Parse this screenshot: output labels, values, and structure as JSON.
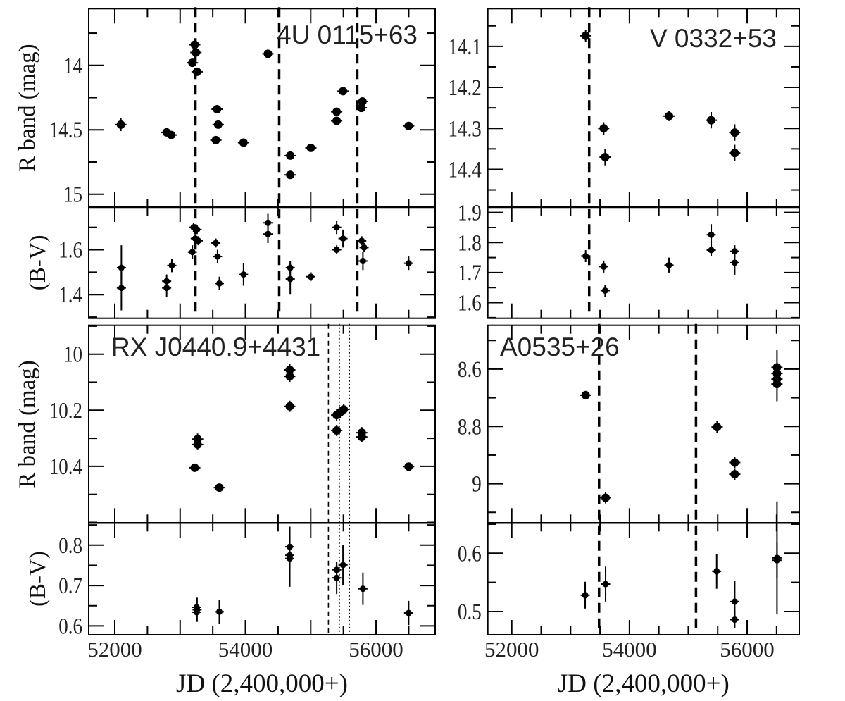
{
  "chart_data": [
    {
      "type": "scatter",
      "title": "4U 0115+63",
      "xlabel": "",
      "xlim": [
        51601,
        56905
      ],
      "xmajor": 1000,
      "xminor": 500,
      "xtick_labels": [],
      "vlines": [
        {
          "x": 53235,
          "style": "dashed"
        },
        {
          "x": 54517,
          "style": "dashed"
        },
        {
          "x": 55713,
          "style": "dashed"
        }
      ],
      "subplots": [
        {
          "ylabel": "R band (mag)",
          "ylim": [
            13.56,
            15.1
          ],
          "inverted": true,
          "ytick_labels": [
            "14",
            "14.5",
            "15"
          ],
          "yminor": 0.25,
          "marker": "large",
          "points": [
            [
              52093,
              14.46,
              0.05
            ],
            [
              52794,
              14.52,
              0.02
            ],
            [
              52865,
              14.54,
              0.02
            ],
            [
              53224,
              13.84,
              0.02
            ],
            [
              53242,
              13.9,
              0.02
            ],
            [
              53188,
              13.98,
              0.02
            ],
            [
              53260,
              14.05,
              0.03
            ],
            [
              53566,
              14.34,
              0.02
            ],
            [
              53583,
              14.46,
              0.02
            ],
            [
              53548,
              14.58,
              0.02
            ],
            [
              53971,
              14.6,
              0.02
            ],
            [
              54345,
              13.91,
              0.03
            ],
            [
              54686,
              14.7,
              0.02
            ],
            [
              54686,
              14.85,
              0.02
            ],
            [
              55002,
              14.64,
              0.02
            ],
            [
              55397,
              14.36,
              0.02
            ],
            [
              55397,
              14.43,
              0.02
            ],
            [
              55494,
              14.2,
              0.02
            ],
            [
              55774,
              14.33,
              0.02
            ],
            [
              55792,
              14.28,
              0.02
            ],
            [
              56499,
              14.47,
              0.02
            ]
          ]
        },
        {
          "ylabel": "(B-V)",
          "ylim": [
            1.295,
            1.79
          ],
          "inverted": false,
          "ytick_labels": [
            "1.4",
            "1.6"
          ],
          "yminor": 0.1,
          "marker": "small",
          "points": [
            [
              52101,
              1.52,
              0.1
            ],
            [
              52101,
              1.43,
              0.1
            ],
            [
              52794,
              1.46,
              0.03
            ],
            [
              52794,
              1.43,
              0.04
            ],
            [
              52873,
              1.53,
              0.03
            ],
            [
              53206,
              1.7,
              0.02
            ],
            [
              53260,
              1.69,
              0.02
            ],
            [
              53232,
              1.65,
              0.02
            ],
            [
              53278,
              1.64,
              0.02
            ],
            [
              53188,
              1.59,
              0.03
            ],
            [
              53548,
              1.63,
              0.02
            ],
            [
              53573,
              1.57,
              0.03
            ],
            [
              53601,
              1.45,
              0.03
            ],
            [
              53971,
              1.49,
              0.05
            ],
            [
              54345,
              1.72,
              0.04
            ],
            [
              54345,
              1.67,
              0.04
            ],
            [
              54686,
              1.52,
              0.03
            ],
            [
              54686,
              1.47,
              0.07
            ],
            [
              55002,
              1.48,
              0.02
            ],
            [
              55397,
              1.7,
              0.03
            ],
            [
              55494,
              1.65,
              0.04
            ],
            [
              55397,
              1.6,
              0.02
            ],
            [
              55781,
              1.64,
              0.02
            ],
            [
              55817,
              1.61,
              0.02
            ],
            [
              55799,
              1.55,
              0.04
            ],
            [
              56499,
              1.54,
              0.03
            ]
          ]
        }
      ]
    },
    {
      "type": "scatter",
      "title": "V 0332+53",
      "xlabel": "",
      "xlim": [
        51593,
        56885
      ],
      "xmajor": 2000,
      "xminor": 500,
      "xtick_labels": [],
      "vlines": [
        {
          "x": 53316,
          "style": "dashed"
        }
      ],
      "subplots": [
        {
          "ylabel": "",
          "ylim": [
            14.008,
            14.492
          ],
          "inverted": true,
          "ytick_labels": [
            "14.1",
            "14.2",
            "14.3",
            "14.4"
          ],
          "yminor": 0.05,
          "marker": "large",
          "points": [
            [
              53256,
              14.074,
              0.015
            ],
            [
              53563,
              14.3,
              0.015
            ],
            [
              53587,
              14.37,
              0.02
            ],
            [
              54672,
              14.27,
              0.012
            ],
            [
              55390,
              14.28,
              0.02
            ],
            [
              55789,
              14.31,
              0.02
            ],
            [
              55789,
              14.36,
              0.02
            ]
          ]
        },
        {
          "ylabel": "",
          "ylim": [
            1.548,
            1.918
          ],
          "inverted": false,
          "ytick_labels": [
            "1.6",
            "1.7",
            "1.8",
            "1.9"
          ],
          "yminor": 0.05,
          "marker": "small",
          "points": [
            [
              53256,
              1.755,
              0.02
            ],
            [
              53563,
              1.72,
              0.02
            ],
            [
              53587,
              1.64,
              0.02
            ],
            [
              54672,
              1.725,
              0.025
            ],
            [
              55390,
              1.826,
              0.035
            ],
            [
              55390,
              1.775,
              0.02
            ],
            [
              55789,
              1.771,
              0.02
            ],
            [
              55789,
              1.733,
              0.04
            ]
          ]
        }
      ]
    },
    {
      "type": "scatter",
      "title": "RX J0440.9+4431",
      "xlabel": "JD (2,400,000+)",
      "xlim": [
        51601,
        56905
      ],
      "xmajor": 1000,
      "xminor": 500,
      "xtick_labels": [
        "52000",
        "54000",
        "56000"
      ],
      "vlines": [
        {
          "x": 55271,
          "style": "thin-dashed"
        },
        {
          "x": 55440,
          "style": "dotted"
        },
        {
          "x": 55594,
          "style": "dotted"
        }
      ],
      "subplots": [
        {
          "ylabel": "R band (mag)",
          "ylim": [
            9.897,
            10.602
          ],
          "inverted": true,
          "ytick_labels": [
            "10",
            "10.2",
            "10.4"
          ],
          "yminor": 0.1,
          "marker": "large",
          "points": [
            [
              54679,
              10.056,
              0.02
            ],
            [
              54679,
              10.079,
              0.02
            ],
            [
              54679,
              10.186,
              0.02
            ],
            [
              55397,
              10.217,
              0.02
            ],
            [
              55451,
              10.207,
              0.02
            ],
            [
              55505,
              10.197,
              0.02
            ],
            [
              55397,
              10.272,
              0.02
            ],
            [
              55781,
              10.28,
              0.02
            ],
            [
              55781,
              10.295,
              0.02
            ],
            [
              53268,
              10.303,
              0.02
            ],
            [
              53268,
              10.322,
              0.02
            ],
            [
              53224,
              10.405,
              0.01
            ],
            [
              53601,
              10.476,
              0.01
            ],
            [
              56499,
              10.401,
              0.01
            ]
          ]
        },
        {
          "ylabel": "(B-V)",
          "ylim": [
            0.578,
            0.855
          ],
          "inverted": false,
          "ytick_labels": [
            "0.6",
            "0.7",
            "0.8"
          ],
          "yminor": 0.05,
          "marker": "small",
          "points": [
            [
              54679,
              0.796,
              0.05
            ],
            [
              54679,
              0.775,
              0.03
            ],
            [
              54679,
              0.767,
              0.07
            ],
            [
              55397,
              0.739,
              0.02
            ],
            [
              55397,
              0.719,
              0.04
            ],
            [
              55494,
              0.751,
              0.05
            ],
            [
              55799,
              0.692,
              0.04
            ],
            [
              53253,
              0.646,
              0.02
            ],
            [
              53253,
              0.634,
              0.02
            ],
            [
              53260,
              0.64,
              0.03
            ],
            [
              53601,
              0.635,
              0.03
            ],
            [
              56499,
              0.632,
              0.03
            ]
          ]
        }
      ]
    },
    {
      "type": "scatter",
      "title": "A0535+26",
      "xlabel": "JD (2,400,000+)",
      "xlim": [
        51593,
        56885
      ],
      "xmajor": 2000,
      "xminor": 500,
      "xtick_labels": [
        "52000",
        "54000",
        "56000"
      ],
      "vlines": [
        {
          "x": 53484,
          "style": "dashed"
        },
        {
          "x": 55131,
          "style": "dashed"
        }
      ],
      "subplots": [
        {
          "ylabel": "",
          "ylim": [
            8.447,
            9.137
          ],
          "inverted": true,
          "ytick_labels": [
            "8.6",
            "8.8",
            "9"
          ],
          "yminor": 0.1,
          "marker": "large",
          "points": [
            [
              53256,
              8.691,
              0.015
            ],
            [
              53595,
              9.049,
              0.02
            ],
            [
              55490,
              8.802,
              0.02
            ],
            [
              55789,
              8.926,
              0.02
            ],
            [
              55789,
              8.967,
              0.02
            ],
            [
              56507,
              8.594,
              0.06
            ],
            [
              56507,
              8.615,
              0.03
            ],
            [
              56507,
              8.635,
              0.03
            ],
            [
              56507,
              8.652,
              0.06
            ]
          ]
        },
        {
          "ylabel": "",
          "ylim": [
            0.46,
            0.652
          ],
          "inverted": false,
          "ytick_labels": [
            "0.5",
            "0.6"
          ],
          "yminor": 0.05,
          "marker": "small",
          "points": [
            [
              53248,
              0.528,
              0.023
            ],
            [
              53595,
              0.547,
              0.03
            ],
            [
              55482,
              0.569,
              0.03
            ],
            [
              55789,
              0.517,
              0.035
            ],
            [
              55789,
              0.486,
              0.015
            ],
            [
              56507,
              0.592,
              0.097
            ],
            [
              56507,
              0.588,
              0.03
            ]
          ]
        }
      ]
    }
  ]
}
